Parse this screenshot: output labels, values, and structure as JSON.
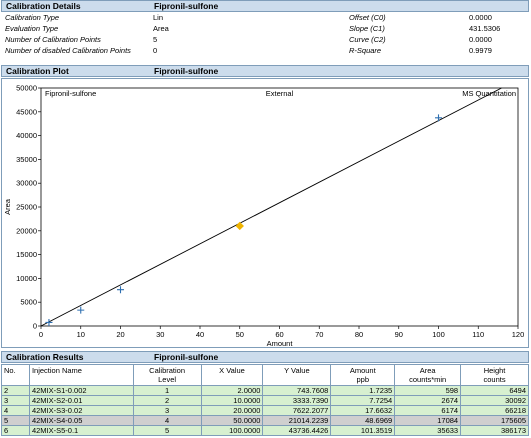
{
  "calibration_details": {
    "header": "Calibration Details",
    "compound": "Fipronil-sulfone",
    "left_rows": [
      {
        "label": "Calibration Type",
        "value": "Lin"
      },
      {
        "label": "Evaluation Type",
        "value": "Area"
      },
      {
        "label": "Number of Calibration Points",
        "value": "5"
      },
      {
        "label": "Number of disabled Calibration Points",
        "value": "0"
      }
    ],
    "right_rows": [
      {
        "label": "Offset (C0)",
        "value": "0.0000"
      },
      {
        "label": "Slope (C1)",
        "value": "431.5306"
      },
      {
        "label": "Curve (C2)",
        "value": "0.0000"
      },
      {
        "label": "R-Square",
        "value": "0.9979"
      }
    ]
  },
  "calibration_plot": {
    "header": "Calibration Plot",
    "compound": "Fipronil-sulfone"
  },
  "chart_data": {
    "type": "scatter",
    "title_left": "Fipronil-sulfone",
    "title_center": "External",
    "title_right": "MS Quantitation",
    "xlabel": "Amount",
    "ylabel": "Area",
    "xlim": [
      0,
      120
    ],
    "ylim": [
      0,
      50000
    ],
    "xticks": [
      0,
      10,
      20,
      30,
      40,
      50,
      60,
      70,
      80,
      90,
      100,
      110,
      120
    ],
    "yticks": [
      0,
      5000,
      10000,
      15000,
      20000,
      25000,
      30000,
      35000,
      40000,
      45000,
      50000
    ],
    "grid": false,
    "series": [
      {
        "points": [
          {
            "x": 2,
            "y": 743.7608,
            "marker": "plus",
            "color": "#2f6fb0"
          },
          {
            "x": 10,
            "y": 3333.739,
            "marker": "plus",
            "color": "#2f6fb0"
          },
          {
            "x": 20,
            "y": 7622.2077,
            "marker": "plus",
            "color": "#2f6fb0"
          },
          {
            "x": 50,
            "y": 21014.2239,
            "marker": "diamond",
            "color": "#f0b400"
          },
          {
            "x": 100,
            "y": 43736.4426,
            "marker": "plus",
            "color": "#2f6fb0"
          }
        ]
      }
    ],
    "fit_line": {
      "intercept": 0,
      "slope": 431.5306,
      "color": "#000000"
    }
  },
  "calibration_results": {
    "header": "Calibration Results",
    "compound": "Fipronil-sulfone",
    "columns": [
      [
        "No."
      ],
      [
        "Injection Name"
      ],
      [
        "Calibration",
        "Level"
      ],
      [
        "X Value"
      ],
      [
        "Y Value"
      ],
      [
        "Amount",
        "ppb"
      ],
      [
        "Area",
        "counts*min"
      ],
      [
        "Height",
        "counts"
      ]
    ],
    "rows": [
      {
        "no": "2",
        "name": "42MIX-S1-0.002",
        "level": "1",
        "x": "2.0000",
        "y": "743.7608",
        "amount": "1.7235",
        "area": "598",
        "height": "6494"
      },
      {
        "no": "3",
        "name": "42MIX-S2-0.01",
        "level": "2",
        "x": "10.0000",
        "y": "3333.7390",
        "amount": "7.7254",
        "area": "2674",
        "height": "30092"
      },
      {
        "no": "4",
        "name": "42MIX-S3-0.02",
        "level": "3",
        "x": "20.0000",
        "y": "7622.2077",
        "amount": "17.6632",
        "area": "6174",
        "height": "66218"
      },
      {
        "no": "5",
        "name": "42MIX-S4-0.05",
        "level": "4",
        "x": "50.0000",
        "y": "21014.2239",
        "amount": "48.6969",
        "area": "17084",
        "height": "175605"
      },
      {
        "no": "6",
        "name": "42MIX-S5-0.1",
        "level": "5",
        "x": "100.0000",
        "y": "43736.4426",
        "amount": "101.3519",
        "area": "35633",
        "height": "386173"
      }
    ]
  },
  "colors": {
    "header_bg": "#ccdcec",
    "border": "#7f9db9",
    "row_green": "#d7f0d0",
    "row_gray": "#cfcfcf"
  }
}
